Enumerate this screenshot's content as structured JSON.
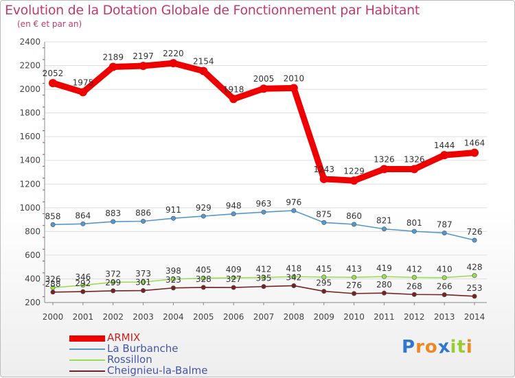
{
  "title": "Evolution de la Dotation Globale de Fonctionnement par Habitant",
  "subtitle": "(en € et par an)",
  "colors": {
    "title": "#c03a6e",
    "axis_text": "#444444",
    "grid": "#dddddd"
  },
  "chart_data": {
    "type": "line",
    "title": "Evolution de la Dotation Globale de Fonctionnement par Habitant",
    "subtitle": "(en € et par an)",
    "xlabel": "",
    "ylabel": "",
    "x": [
      "2000",
      "2001",
      "2002",
      "2003",
      "2004",
      "2005",
      "2006",
      "2007",
      "2008",
      "2009",
      "2010",
      "2011",
      "2012",
      "2013",
      "2014"
    ],
    "ylim": [
      200,
      2400
    ],
    "yticks": [
      200,
      400,
      600,
      800,
      1000,
      1200,
      1400,
      1600,
      1800,
      2000,
      2200,
      2400
    ],
    "grid": "horizontal",
    "legend_position": "bottom-left",
    "series": [
      {
        "name": "ARMIX",
        "color": "#ee0000",
        "style": "thick",
        "values": [
          2052,
          1975,
          2189,
          2197,
          2220,
          2154,
          1918,
          2005,
          2010,
          1243,
          1229,
          1326,
          1326,
          1444,
          1464
        ],
        "labels": [
          "2052",
          "1975",
          "2189",
          "2197",
          "2220",
          "2154",
          "1918",
          "2005",
          "2010",
          "1243",
          "1229",
          "1326",
          "1326",
          "1444",
          "1464"
        ]
      },
      {
        "name": "La Burbanche",
        "color": "#5599cc",
        "style": "thin",
        "values": [
          858,
          864,
          883,
          886,
          911,
          929,
          948,
          963,
          976,
          875,
          860,
          821,
          801,
          787,
          726
        ],
        "labels": [
          "858",
          "864",
          "883",
          "886",
          "911",
          "929",
          "948",
          "963",
          "976",
          "875",
          "860",
          "821",
          "801",
          "787",
          "726"
        ]
      },
      {
        "name": "Rossillon",
        "color": "#99dd55",
        "style": "thin",
        "values": [
          326,
          346,
          372,
          373,
          398,
          405,
          409,
          412,
          418,
          415,
          413,
          419,
          412,
          410,
          428
        ],
        "labels": [
          "326",
          "346",
          "372",
          "373",
          "398",
          "405",
          "409",
          "412",
          "418",
          "415",
          "413",
          "419",
          "412",
          "410",
          "428"
        ]
      },
      {
        "name": "Cheignieu-la-Balme",
        "color": "#772222",
        "style": "thin",
        "values": [
          288,
          292,
          299,
          301,
          323,
          328,
          327,
          335,
          342,
          295,
          276,
          280,
          268,
          266,
          253
        ],
        "labels": [
          "288",
          "292",
          "299",
          "301",
          "323",
          "328",
          "327",
          "335",
          "342",
          "295",
          "276",
          "280",
          "268",
          "266",
          "253"
        ]
      }
    ]
  },
  "logo": {
    "letters": [
      "P",
      "r",
      "o",
      "x",
      "i",
      "t",
      "i"
    ],
    "colors": [
      "#3377cc",
      "#ee8822",
      "#ee8822",
      "#3377cc",
      "#99cc33",
      "#99cc33",
      "#ee8822"
    ]
  }
}
